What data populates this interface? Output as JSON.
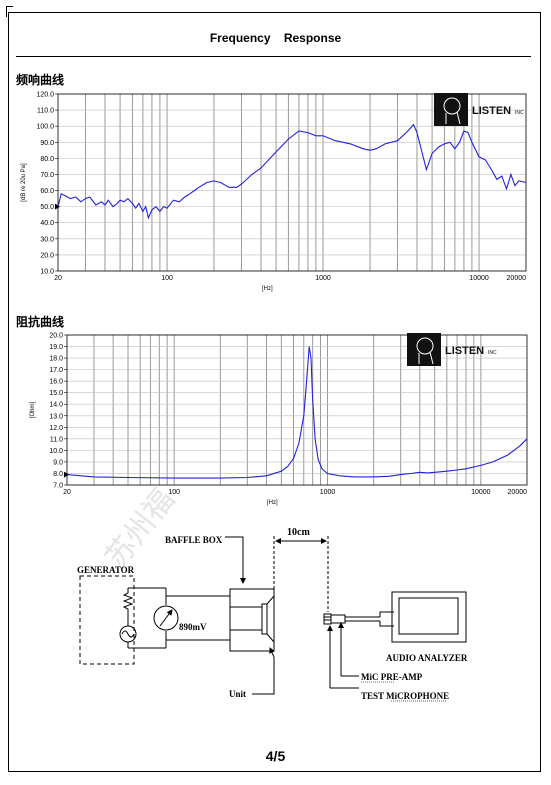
{
  "header": {
    "title": "Frequency    Response"
  },
  "footer": {
    "page": "4/5"
  },
  "frequency_section": {
    "label": "频响曲线"
  },
  "impedance_section": {
    "label": "阻抗曲线"
  },
  "logo": {
    "text": "LISTEN",
    "suffix": "INC"
  },
  "watermark": {
    "text": "苏州福"
  },
  "colors": {
    "curve": "#2222dd",
    "grid": "#9a9a9a",
    "axis": "#000000"
  },
  "chart_data": [
    {
      "type": "line",
      "title": "频响曲线",
      "xlabel": "[Hz]",
      "ylabel": "[dB re 20u Pa]",
      "xscale": "log",
      "xlim": [
        20,
        20000
      ],
      "ylim": [
        10,
        120
      ],
      "grid": true,
      "x_ticks": [
        20,
        100,
        1000,
        10000,
        20000
      ],
      "x_tick_labels": [
        "20",
        "100",
        "1000",
        "10000",
        "20000"
      ],
      "y_ticks": [
        10,
        20,
        30,
        40,
        50,
        60,
        70,
        80,
        90,
        100,
        110,
        120
      ],
      "y_tick_labels": [
        "10.0",
        "20.0",
        "30.0",
        "40.0",
        "50.0",
        "60.0",
        "70.0",
        "80.0",
        "90.0",
        "100.0",
        "110.0",
        "120.0"
      ],
      "series": [
        {
          "x": [
            20,
            21,
            22,
            24,
            26,
            28,
            30,
            32,
            35,
            38,
            40,
            42,
            45,
            48,
            50,
            53,
            56,
            60,
            63,
            66,
            70,
            73,
            76,
            80,
            85,
            90,
            95,
            100,
            110,
            120,
            130,
            140,
            150,
            160,
            180,
            200,
            220,
            250,
            280,
            300,
            350,
            400,
            500,
            600,
            700,
            800,
            900,
            1000,
            1200,
            1500,
            1800,
            2000,
            2200,
            2500,
            3000,
            3500,
            3800,
            4000,
            4300,
            4600,
            5000,
            5500,
            6000,
            6500,
            7000,
            7500,
            8000,
            8500,
            9000,
            10000,
            11000,
            12000,
            13000,
            14000,
            15000,
            16000,
            17000,
            18000,
            20000
          ],
          "y": [
            50,
            58,
            57,
            55,
            56,
            53,
            55,
            56,
            51,
            53,
            51,
            54,
            50,
            52,
            54,
            53,
            55,
            52,
            49,
            52,
            47,
            50,
            43,
            48,
            50,
            47,
            50,
            49,
            54,
            53,
            56,
            58,
            60,
            62,
            65,
            66,
            65,
            62,
            62,
            64,
            70,
            74,
            84,
            92,
            97,
            96,
            94,
            94,
            91,
            89,
            86,
            85,
            86,
            89,
            91,
            97,
            101,
            96,
            84,
            73,
            83,
            87,
            89,
            90,
            86,
            90,
            97,
            96,
            90,
            81,
            79,
            73,
            67,
            69,
            61,
            70,
            63,
            66,
            65
          ]
        }
      ]
    },
    {
      "type": "line",
      "title": "阻抗曲线",
      "xlabel": "[Hz]",
      "ylabel": "[Ohm]",
      "xscale": "log",
      "xlim": [
        20,
        20000
      ],
      "ylim": [
        7,
        20
      ],
      "grid": true,
      "x_ticks": [
        20,
        100,
        1000,
        10000,
        20000
      ],
      "x_tick_labels": [
        "20",
        "100",
        "1000",
        "10000",
        "20000"
      ],
      "y_ticks": [
        7,
        8,
        9,
        10,
        11,
        12,
        13,
        14,
        15,
        16,
        17,
        18,
        19,
        20
      ],
      "y_tick_labels": [
        "7.0",
        "8.0",
        "9.0",
        "10.0",
        "11.0",
        "12.0",
        "13.0",
        "14.0",
        "15.0",
        "16.0",
        "17.0",
        "18.0",
        "19.0",
        "20.0"
      ],
      "series": [
        {
          "x": [
            20,
            30,
            50,
            100,
            200,
            300,
            400,
            500,
            550,
            600,
            650,
            700,
            730,
            760,
            780,
            800,
            830,
            870,
            920,
            1000,
            1200,
            1500,
            2000,
            2500,
            3000,
            3500,
            4000,
            4500,
            5000,
            6000,
            7000,
            8000,
            10000,
            12000,
            15000,
            18000,
            20000
          ],
          "y": [
            7.9,
            7.7,
            7.65,
            7.6,
            7.6,
            7.65,
            7.8,
            8.2,
            8.6,
            9.3,
            10.6,
            13.0,
            16.0,
            19.0,
            18.0,
            14.5,
            11.0,
            9.2,
            8.4,
            8.0,
            7.8,
            7.7,
            7.7,
            7.75,
            7.9,
            8.0,
            8.1,
            8.05,
            8.1,
            8.2,
            8.3,
            8.4,
            8.7,
            9.0,
            9.6,
            10.4,
            11.0
          ]
        }
      ]
    }
  ],
  "diagram": {
    "generator": "GENERATOR",
    "voltage": "890mV",
    "baffle_box": "BAFFLE BOX",
    "distance": "10cm",
    "unit": "Unit",
    "audio_analyzer": "AUDIO ANALYZER",
    "mic_preamp": "MiC PRE-AMP",
    "test_mic": "TEST MiCROPHONE"
  }
}
